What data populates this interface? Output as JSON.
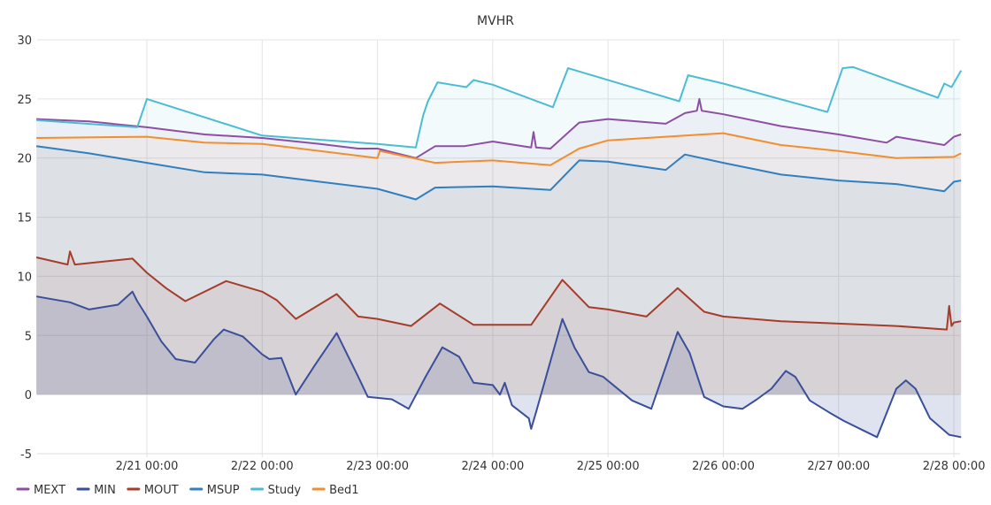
{
  "chart_data": {
    "type": "line",
    "title": "MVHR",
    "xlabel": "",
    "ylabel": "",
    "ylim": [
      -5,
      30
    ],
    "yticks": [
      -5,
      0,
      5,
      10,
      15,
      20,
      25,
      30
    ],
    "xlim": [
      "2/20 01:00",
      "2/28 01:30"
    ],
    "xticks": [
      "2/21 00:00",
      "2/22 00:00",
      "2/23 00:00",
      "2/24 00:00",
      "2/25 00:00",
      "2/26 00:00",
      "2/27 00:00",
      "2/28 00:00"
    ],
    "grid": true,
    "legend_position": "bottom-left",
    "area_fill": true,
    "series": [
      {
        "name": "MEXT",
        "color": "#8e4fa3",
        "points": [
          [
            "2/20 01:00",
            23.3
          ],
          [
            "2/20 12:00",
            23.1
          ],
          [
            "2/21 00:00",
            22.6
          ],
          [
            "2/21 12:00",
            22.0
          ],
          [
            "2/22 00:00",
            21.7
          ],
          [
            "2/22 12:00",
            21.2
          ],
          [
            "2/22 20:00",
            20.8
          ],
          [
            "2/23 00:00",
            20.8
          ],
          [
            "2/23 08:00",
            20.0
          ],
          [
            "2/23 12:00",
            21.0
          ],
          [
            "2/23 18:00",
            21.0
          ],
          [
            "2/24 00:00",
            21.4
          ],
          [
            "2/24 08:00",
            20.9
          ],
          [
            "2/24 08:30",
            22.2
          ],
          [
            "2/24 09:00",
            20.9
          ],
          [
            "2/24 12:00",
            20.8
          ],
          [
            "2/24 18:00",
            23.0
          ],
          [
            "2/25 00:00",
            23.3
          ],
          [
            "2/25 12:00",
            22.9
          ],
          [
            "2/25 16:00",
            23.8
          ],
          [
            "2/25 18:30",
            24.0
          ],
          [
            "2/25 19:00",
            25.0
          ],
          [
            "2/25 19:30",
            24.0
          ],
          [
            "2/26 00:00",
            23.7
          ],
          [
            "2/26 12:00",
            22.7
          ],
          [
            "2/27 00:00",
            22.0
          ],
          [
            "2/27 10:00",
            21.3
          ],
          [
            "2/27 12:00",
            21.8
          ],
          [
            "2/27 22:00",
            21.1
          ],
          [
            "2/28 00:00",
            21.8
          ],
          [
            "2/28 01:30",
            22.0
          ]
        ]
      },
      {
        "name": "MIN",
        "color": "#3a4f9a",
        "points": [
          [
            "2/20 01:00",
            8.3
          ],
          [
            "2/20 08:00",
            7.8
          ],
          [
            "2/20 12:00",
            7.2
          ],
          [
            "2/20 18:00",
            7.6
          ],
          [
            "2/20 21:00",
            8.7
          ],
          [
            "2/20 22:00",
            7.9
          ],
          [
            "2/21 00:00",
            6.6
          ],
          [
            "2/21 03:00",
            4.5
          ],
          [
            "2/21 06:00",
            3.0
          ],
          [
            "2/21 10:00",
            2.7
          ],
          [
            "2/21 14:00",
            4.7
          ],
          [
            "2/21 16:00",
            5.5
          ],
          [
            "2/21 20:00",
            4.9
          ],
          [
            "2/22 00:00",
            3.4
          ],
          [
            "2/22 01:30",
            3.0
          ],
          [
            "2/22 04:00",
            3.1
          ],
          [
            "2/22 07:00",
            0.0
          ],
          [
            "2/22 11:00",
            2.5
          ],
          [
            "2/22 15:30",
            5.2
          ],
          [
            "2/22 20:00",
            1.5
          ],
          [
            "2/22 22:00",
            -0.2
          ],
          [
            "2/23 03:00",
            -0.4
          ],
          [
            "2/23 06:30",
            -1.2
          ],
          [
            "2/23 10:00",
            1.5
          ],
          [
            "2/23 13:30",
            4.0
          ],
          [
            "2/23 17:00",
            3.2
          ],
          [
            "2/23 20:00",
            1.0
          ],
          [
            "2/24 00:00",
            0.8
          ],
          [
            "2/24 01:30",
            0.0
          ],
          [
            "2/24 02:30",
            1.0
          ],
          [
            "2/24 04:00",
            -0.9
          ],
          [
            "2/24 07:30",
            -2.0
          ],
          [
            "2/24 08:00",
            -2.9
          ],
          [
            "2/24 09:00",
            -1.5
          ],
          [
            "2/24 14:30",
            6.4
          ],
          [
            "2/24 17:00",
            4.0
          ],
          [
            "2/24 20:00",
            1.9
          ],
          [
            "2/24 23:00",
            1.5
          ],
          [
            "2/25 05:00",
            -0.5
          ],
          [
            "2/25 09:00",
            -1.2
          ],
          [
            "2/25 14:30",
            5.3
          ],
          [
            "2/25 17:00",
            3.5
          ],
          [
            "2/25 20:00",
            -0.2
          ],
          [
            "2/26 00:00",
            -1.0
          ],
          [
            "2/26 04:00",
            -1.2
          ],
          [
            "2/26 07:00",
            -0.4
          ],
          [
            "2/26 10:00",
            0.5
          ],
          [
            "2/26 13:00",
            2.0
          ],
          [
            "2/26 15:00",
            1.5
          ],
          [
            "2/26 18:00",
            -0.5
          ],
          [
            "2/26 22:00",
            -1.5
          ],
          [
            "2/27 01:00",
            -2.2
          ],
          [
            "2/27 05:00",
            -3.0
          ],
          [
            "2/27 08:00",
            -3.6
          ],
          [
            "2/27 12:00",
            0.5
          ],
          [
            "2/27 14:00",
            1.2
          ],
          [
            "2/27 16:00",
            0.5
          ],
          [
            "2/27 19:00",
            -2.0
          ],
          [
            "2/27 23:00",
            -3.4
          ],
          [
            "2/28 01:30",
            -3.6
          ]
        ]
      },
      {
        "name": "MOUT",
        "color": "#a63c2a",
        "points": [
          [
            "2/20 01:00",
            11.6
          ],
          [
            "2/20 07:30",
            11.0
          ],
          [
            "2/20 08:00",
            12.1
          ],
          [
            "2/20 09:00",
            11.0
          ],
          [
            "2/20 21:00",
            11.5
          ],
          [
            "2/21 00:00",
            10.3
          ],
          [
            "2/21 04:00",
            9.0
          ],
          [
            "2/21 08:00",
            7.9
          ],
          [
            "2/21 16:30",
            9.6
          ],
          [
            "2/22 00:00",
            8.7
          ],
          [
            "2/22 03:00",
            8.0
          ],
          [
            "2/22 07:00",
            6.4
          ],
          [
            "2/22 15:30",
            8.5
          ],
          [
            "2/22 20:00",
            6.6
          ],
          [
            "2/23 00:00",
            6.4
          ],
          [
            "2/23 07:00",
            5.8
          ],
          [
            "2/23 13:00",
            7.7
          ],
          [
            "2/23 20:00",
            5.9
          ],
          [
            "2/24 00:00",
            5.9
          ],
          [
            "2/24 08:00",
            5.9
          ],
          [
            "2/24 14:30",
            9.7
          ],
          [
            "2/24 20:00",
            7.4
          ],
          [
            "2/25 00:00",
            7.2
          ],
          [
            "2/25 08:00",
            6.6
          ],
          [
            "2/25 14:30",
            9.0
          ],
          [
            "2/25 20:00",
            7.0
          ],
          [
            "2/26 00:00",
            6.6
          ],
          [
            "2/26 12:00",
            6.2
          ],
          [
            "2/27 00:00",
            6.0
          ],
          [
            "2/27 12:00",
            5.8
          ],
          [
            "2/27 22:30",
            5.5
          ],
          [
            "2/27 23:00",
            7.5
          ],
          [
            "2/27 23:30",
            5.8
          ],
          [
            "2/28 00:00",
            6.1
          ],
          [
            "2/28 01:30",
            6.2
          ]
        ]
      },
      {
        "name": "MSUP",
        "color": "#2f7fc1",
        "points": [
          [
            "2/20 01:00",
            21.0
          ],
          [
            "2/20 12:00",
            20.4
          ],
          [
            "2/21 00:00",
            19.6
          ],
          [
            "2/21 12:00",
            18.8
          ],
          [
            "2/22 00:00",
            18.6
          ],
          [
            "2/22 12:00",
            18.0
          ],
          [
            "2/23 00:00",
            17.4
          ],
          [
            "2/23 08:00",
            16.5
          ],
          [
            "2/23 12:00",
            17.5
          ],
          [
            "2/24 00:00",
            17.6
          ],
          [
            "2/24 12:00",
            17.3
          ],
          [
            "2/24 18:00",
            19.8
          ],
          [
            "2/25 00:00",
            19.7
          ],
          [
            "2/25 12:00",
            19.0
          ],
          [
            "2/25 16:00",
            20.3
          ],
          [
            "2/26 00:00",
            19.6
          ],
          [
            "2/26 12:00",
            18.6
          ],
          [
            "2/27 00:00",
            18.1
          ],
          [
            "2/27 12:00",
            17.8
          ],
          [
            "2/27 22:00",
            17.2
          ],
          [
            "2/28 00:00",
            18.0
          ],
          [
            "2/28 01:30",
            18.1
          ]
        ]
      },
      {
        "name": "Study",
        "color": "#4cbcd4",
        "points": [
          [
            "2/20 01:00",
            23.2
          ],
          [
            "2/20 22:00",
            22.6
          ],
          [
            "2/21 00:00",
            25.0
          ],
          [
            "2/22 00:00",
            21.9
          ],
          [
            "2/23 00:00",
            21.2
          ],
          [
            "2/23 08:00",
            20.9
          ],
          [
            "2/23 09:30",
            23.6
          ],
          [
            "2/23 10:30",
            24.8
          ],
          [
            "2/23 12:30",
            26.4
          ],
          [
            "2/23 18:30",
            26.0
          ],
          [
            "2/23 20:00",
            26.6
          ],
          [
            "2/24 00:00",
            26.2
          ],
          [
            "2/24 12:30",
            24.3
          ],
          [
            "2/24 15:40",
            27.6
          ],
          [
            "2/25 14:50",
            24.8
          ],
          [
            "2/25 16:40",
            27.0
          ],
          [
            "2/26 00:00",
            26.3
          ],
          [
            "2/26 21:40",
            23.9
          ],
          [
            "2/27 00:50",
            27.6
          ],
          [
            "2/27 03:00",
            27.7
          ],
          [
            "2/27 20:40",
            25.1
          ],
          [
            "2/27 22:00",
            26.3
          ],
          [
            "2/27 23:30",
            26.0
          ],
          [
            "2/28 01:30",
            27.4
          ]
        ]
      },
      {
        "name": "Bed1",
        "color": "#f28e2b",
        "points": [
          [
            "2/20 01:00",
            21.7
          ],
          [
            "2/21 00:00",
            21.8
          ],
          [
            "2/21 12:00",
            21.3
          ],
          [
            "2/22 00:00",
            21.2
          ],
          [
            "2/22 12:00",
            20.6
          ],
          [
            "2/23 00:00",
            20.0
          ],
          [
            "2/23 00:30",
            20.6
          ],
          [
            "2/23 12:00",
            19.6
          ],
          [
            "2/24 00:00",
            19.8
          ],
          [
            "2/24 12:00",
            19.4
          ],
          [
            "2/24 18:00",
            20.8
          ],
          [
            "2/25 00:00",
            21.5
          ],
          [
            "2/25 12:00",
            21.8
          ],
          [
            "2/26 00:00",
            22.1
          ],
          [
            "2/26 12:00",
            21.1
          ],
          [
            "2/27 00:00",
            20.6
          ],
          [
            "2/27 12:00",
            20.0
          ],
          [
            "2/28 00:00",
            20.1
          ],
          [
            "2/28 01:30",
            20.4
          ]
        ]
      }
    ]
  }
}
